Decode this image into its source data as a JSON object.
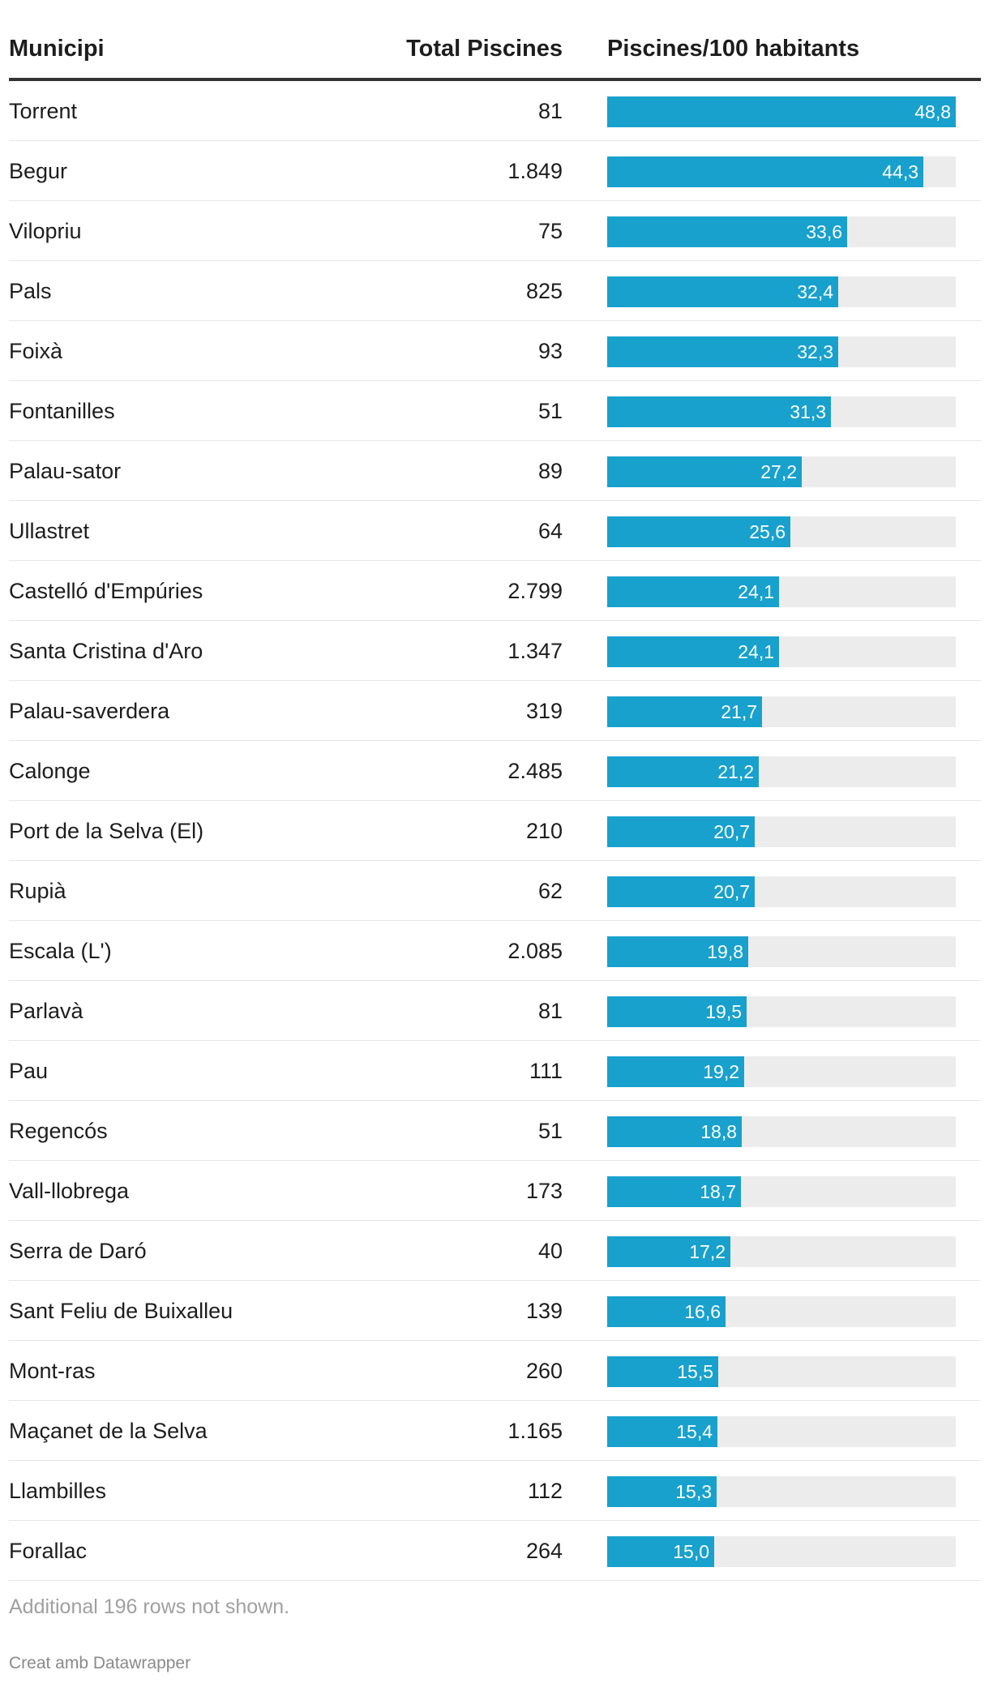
{
  "header": {
    "municipi": "Municipi",
    "total": "Total Piscines",
    "ratio": "Piscines/100 habitants"
  },
  "chart_data": {
    "type": "table",
    "columns": [
      "Municipi",
      "Total Piscines",
      "Piscines/100 habitants"
    ],
    "max_value": 48.8,
    "bar_color": "#18a1cd",
    "track_color": "#ececec",
    "rows": [
      {
        "name": "Torrent",
        "total": "81",
        "value": 48.8,
        "label": "48,8"
      },
      {
        "name": "Begur",
        "total": "1.849",
        "value": 44.3,
        "label": "44,3"
      },
      {
        "name": "Vilopriu",
        "total": "75",
        "value": 33.6,
        "label": "33,6"
      },
      {
        "name": "Pals",
        "total": "825",
        "value": 32.4,
        "label": "32,4"
      },
      {
        "name": "Foixà",
        "total": "93",
        "value": 32.3,
        "label": "32,3"
      },
      {
        "name": "Fontanilles",
        "total": "51",
        "value": 31.3,
        "label": "31,3"
      },
      {
        "name": "Palau-sator",
        "total": "89",
        "value": 27.2,
        "label": "27,2"
      },
      {
        "name": "Ullastret",
        "total": "64",
        "value": 25.6,
        "label": "25,6"
      },
      {
        "name": "Castelló d'Empúries",
        "total": "2.799",
        "value": 24.1,
        "label": "24,1"
      },
      {
        "name": "Santa Cristina d'Aro",
        "total": "1.347",
        "value": 24.1,
        "label": "24,1"
      },
      {
        "name": "Palau-saverdera",
        "total": "319",
        "value": 21.7,
        "label": "21,7"
      },
      {
        "name": "Calonge",
        "total": "2.485",
        "value": 21.2,
        "label": "21,2"
      },
      {
        "name": "Port de la Selva (El)",
        "total": "210",
        "value": 20.7,
        "label": "20,7"
      },
      {
        "name": "Rupià",
        "total": "62",
        "value": 20.7,
        "label": "20,7"
      },
      {
        "name": "Escala (L')",
        "total": "2.085",
        "value": 19.8,
        "label": "19,8"
      },
      {
        "name": "Parlavà",
        "total": "81",
        "value": 19.5,
        "label": "19,5"
      },
      {
        "name": "Pau",
        "total": "111",
        "value": 19.2,
        "label": "19,2"
      },
      {
        "name": "Regencós",
        "total": "51",
        "value": 18.8,
        "label": "18,8"
      },
      {
        "name": "Vall-llobrega",
        "total": "173",
        "value": 18.7,
        "label": "18,7"
      },
      {
        "name": "Serra de Daró",
        "total": "40",
        "value": 17.2,
        "label": "17,2"
      },
      {
        "name": "Sant Feliu de Buixalleu",
        "total": "139",
        "value": 16.6,
        "label": "16,6"
      },
      {
        "name": "Mont-ras",
        "total": "260",
        "value": 15.5,
        "label": "15,5"
      },
      {
        "name": "Maçanet de la Selva",
        "total": "1.165",
        "value": 15.4,
        "label": "15,4"
      },
      {
        "name": "Llambilles",
        "total": "112",
        "value": 15.3,
        "label": "15,3"
      },
      {
        "name": "Forallac",
        "total": "264",
        "value": 15.0,
        "label": "15,0"
      }
    ]
  },
  "notes": "Additional 196 rows not shown.",
  "credit": "Creat amb Datawrapper"
}
